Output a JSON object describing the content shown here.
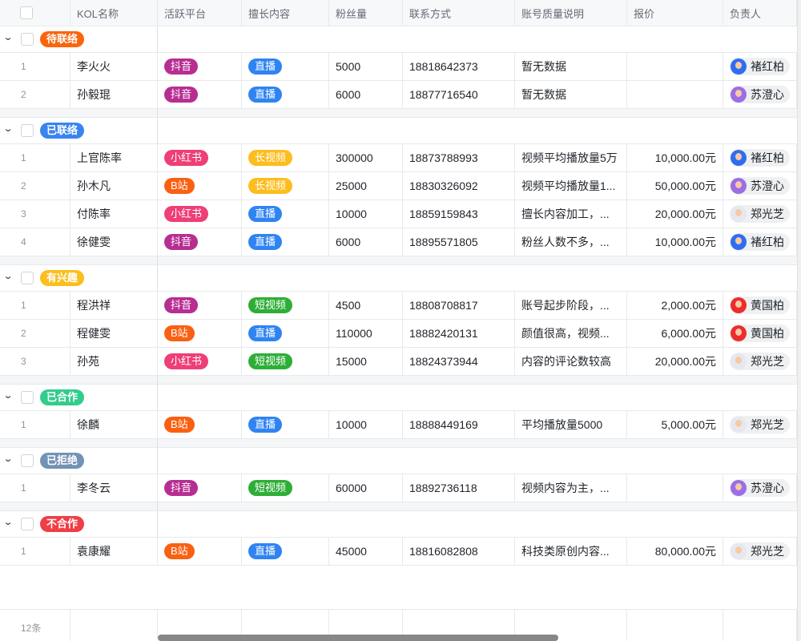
{
  "columns": [
    "KOL名称",
    "活跃平台",
    "擅长内容",
    "粉丝量",
    "联系方式",
    "账号质量说明",
    "报价",
    "负责人"
  ],
  "colors": {
    "status": {
      "待联络": "#f9650d",
      "已联络": "#3a84f0",
      "有兴趣": "#fcbe1e",
      "已合作": "#33cc8c",
      "已拒绝": "#7393b4",
      "不合作": "#ef3e46"
    },
    "platform": {
      "抖音": "#b72e92",
      "小红书": "#ee3f77",
      "B站": "#fa6012"
    },
    "content": {
      "直播": "#2f84f2",
      "长视频": "#fdbd1f",
      "短视频": "#2eae37"
    },
    "avatar": {
      "褚红柏": "#2f6df0",
      "苏澄心": "#9b6ee6",
      "郑光芝": "#e6e8f0",
      "黄国柏": "#ee2c2c"
    }
  },
  "groups": [
    {
      "status": "待联络",
      "rows": [
        {
          "n": "1",
          "name": "李火火",
          "platform": "抖音",
          "content": "直播",
          "fans": "5000",
          "phone": "18818642373",
          "quality": "暂无数据",
          "price": "",
          "owner": "褚红柏"
        },
        {
          "n": "2",
          "name": "孙毅琨",
          "platform": "抖音",
          "content": "直播",
          "fans": "6000",
          "phone": "18877716540",
          "quality": "暂无数据",
          "price": "",
          "owner": "苏澄心"
        }
      ]
    },
    {
      "status": "已联络",
      "rows": [
        {
          "n": "1",
          "name": "上官陈率",
          "platform": "小红书",
          "content": "长视频",
          "fans": "300000",
          "phone": "18873788993",
          "quality": "视频平均播放量5万",
          "price": "10,000.00元",
          "owner": "褚红柏"
        },
        {
          "n": "2",
          "name": "孙木凡",
          "platform": "B站",
          "content": "长视频",
          "fans": "25000",
          "phone": "18830326092",
          "quality": "视频平均播放量1...",
          "price": "50,000.00元",
          "owner": "苏澄心"
        },
        {
          "n": "3",
          "name": "付陈率",
          "platform": "小红书",
          "content": "直播",
          "fans": "10000",
          "phone": "18859159843",
          "quality": "擅长内容加工，...",
          "price": "20,000.00元",
          "owner": "郑光芝"
        },
        {
          "n": "4",
          "name": "徐健雯",
          "platform": "抖音",
          "content": "直播",
          "fans": "6000",
          "phone": "18895571805",
          "quality": "粉丝人数不多，...",
          "price": "10,000.00元",
          "owner": "褚红柏"
        }
      ]
    },
    {
      "status": "有兴趣",
      "rows": [
        {
          "n": "1",
          "name": "程洪祥",
          "platform": "抖音",
          "content": "短视频",
          "fans": "4500",
          "phone": "18808708817",
          "quality": "账号起步阶段，...",
          "price": "2,000.00元",
          "owner": "黄国柏"
        },
        {
          "n": "2",
          "name": "程健雯",
          "platform": "B站",
          "content": "直播",
          "fans": "110000",
          "phone": "18882420131",
          "quality": "颜值很高，视频...",
          "price": "6,000.00元",
          "owner": "黄国柏"
        },
        {
          "n": "3",
          "name": "孙苑",
          "platform": "小红书",
          "content": "短视频",
          "fans": "15000",
          "phone": "18824373944",
          "quality": "内容的评论数较高",
          "price": "20,000.00元",
          "owner": "郑光芝"
        }
      ]
    },
    {
      "status": "已合作",
      "rows": [
        {
          "n": "1",
          "name": "徐麟",
          "platform": "B站",
          "content": "直播",
          "fans": "10000",
          "phone": "18888449169",
          "quality": "平均播放量5000",
          "price": "5,000.00元",
          "owner": "郑光芝"
        }
      ]
    },
    {
      "status": "已拒绝",
      "rows": [
        {
          "n": "1",
          "name": "李冬云",
          "platform": "抖音",
          "content": "短视频",
          "fans": "60000",
          "phone": "18892736118",
          "quality": "视频内容为主，...",
          "price": "",
          "owner": "苏澄心"
        }
      ]
    },
    {
      "status": "不合作",
      "rows": [
        {
          "n": "1",
          "name": "袁康耀",
          "platform": "B站",
          "content": "直播",
          "fans": "45000",
          "phone": "18816082808",
          "quality": "科技类原创内容...",
          "price": "80,000.00元",
          "owner": "郑光芝"
        }
      ]
    }
  ],
  "footer": {
    "count": "12条"
  }
}
